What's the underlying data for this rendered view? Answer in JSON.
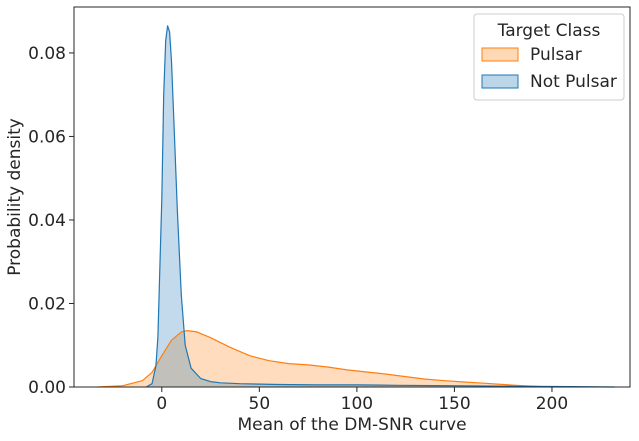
{
  "chart_data": {
    "type": "area",
    "title": "",
    "xlabel": "Mean of the DM-SNR curve",
    "ylabel": "Probability density",
    "xlim": [
      -45,
      240
    ],
    "ylim": [
      0,
      0.091
    ],
    "xticks": [
      0,
      50,
      100,
      150,
      200
    ],
    "yticks": [
      0.0,
      0.02,
      0.04,
      0.06,
      0.08
    ],
    "ytick_labels": [
      "0.00",
      "0.02",
      "0.04",
      "0.06",
      "0.08"
    ],
    "grid": false,
    "legend": {
      "title": "Target Class",
      "placement": "top-right",
      "entries": [
        "Pulsar",
        "Not Pulsar"
      ]
    },
    "series": [
      {
        "name": "Pulsar",
        "color": "#ff7f0e",
        "fill": "#ffd7b4",
        "x": [
          -33,
          -20,
          -10,
          -5,
          0,
          5,
          10,
          13,
          18,
          25,
          35,
          45,
          55,
          65,
          75,
          85,
          95,
          105,
          115,
          125,
          135,
          145,
          155,
          165,
          175,
          185,
          195,
          200
        ],
        "y": [
          0.0,
          0.0003,
          0.0015,
          0.0035,
          0.0075,
          0.0112,
          0.0132,
          0.0135,
          0.0132,
          0.0118,
          0.0095,
          0.0075,
          0.0063,
          0.0056,
          0.0053,
          0.0048,
          0.0041,
          0.0036,
          0.0031,
          0.0025,
          0.0019,
          0.0015,
          0.0012,
          0.0009,
          0.0006,
          0.0003,
          0.0001,
          0.0
        ]
      },
      {
        "name": "Not Pulsar",
        "color": "#1f77b4",
        "fill": "#b9d2e7",
        "x": [
          -8,
          -5,
          -3,
          -2,
          0,
          1,
          2,
          3,
          4,
          5,
          6,
          8,
          10,
          12,
          15,
          20,
          25,
          30,
          40,
          60,
          80,
          100,
          120,
          150,
          180,
          210,
          232
        ],
        "y": [
          0.0,
          0.0008,
          0.005,
          0.012,
          0.045,
          0.07,
          0.083,
          0.0865,
          0.085,
          0.078,
          0.066,
          0.042,
          0.022,
          0.01,
          0.0045,
          0.002,
          0.0013,
          0.001,
          0.0008,
          0.0006,
          0.0005,
          0.0005,
          0.0004,
          0.0003,
          0.0002,
          0.0001,
          0.0
        ]
      }
    ]
  }
}
